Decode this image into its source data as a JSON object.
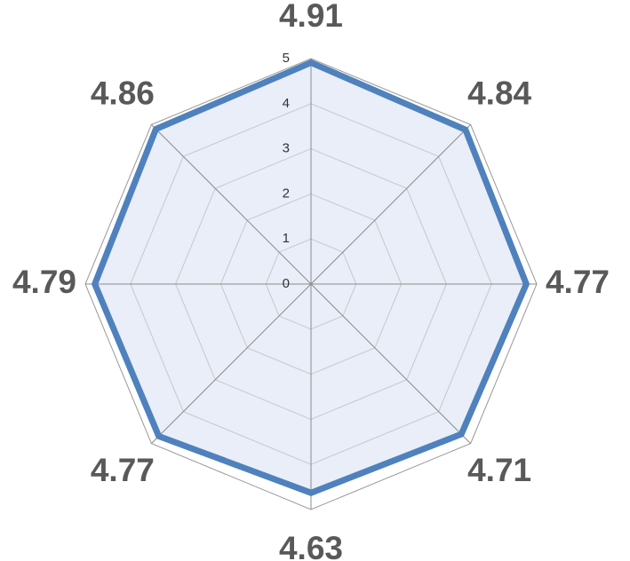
{
  "chart_data": {
    "type": "radar",
    "categories": [
      null,
      null,
      null,
      null,
      null,
      null,
      null,
      null
    ],
    "series": [
      {
        "color": "#4f81bd",
        "fill": "#e9eef8",
        "values": [
          4.91,
          4.84,
          4.77,
          4.71,
          4.63,
          4.77,
          4.79,
          4.86
        ]
      }
    ],
    "ylim": [
      0,
      5
    ],
    "yticks": [
      0,
      1,
      2,
      3,
      4,
      5
    ],
    "grid": true
  }
}
